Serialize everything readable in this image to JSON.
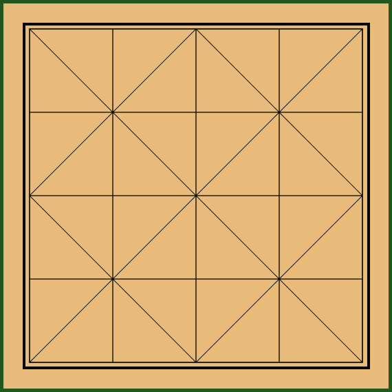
{
  "game": {
    "name": "board",
    "grid_rows": 4,
    "grid_cols": 4,
    "pieces": []
  },
  "colors": {
    "frame_border": "#24571f",
    "board_fill": "#e8bb7b",
    "line_color": "#000000"
  }
}
